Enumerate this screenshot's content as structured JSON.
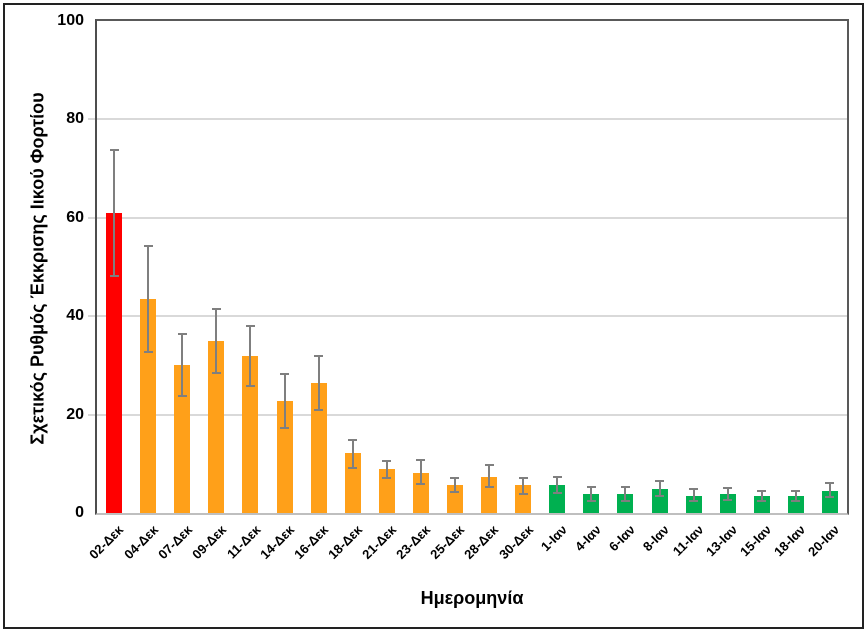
{
  "chart_data": {
    "type": "bar",
    "title": "",
    "xlabel": "Ημερομηνία",
    "ylabel": "Σχετικός Ρυθμός Έκκρισης Ιικού Φορτίου",
    "ylim": [
      0,
      100
    ],
    "yticks": [
      0,
      20,
      40,
      60,
      80,
      100
    ],
    "grid": true,
    "legend": "none",
    "categories": [
      "02-Δεκ",
      "04-Δεκ",
      "07-Δεκ",
      "09-Δεκ",
      "11-Δεκ",
      "14-Δεκ",
      "16-Δεκ",
      "18-Δεκ",
      "21-Δεκ",
      "23-Δεκ",
      "25-Δεκ",
      "28-Δεκ",
      "30-Δεκ",
      "1-Ιαν",
      "4-Ιαν",
      "6-Ιαν",
      "8-Ιαν",
      "11-Ιαν",
      "13-Ιαν",
      "15-Ιαν",
      "18-Ιαν",
      "20-Ιαν"
    ],
    "values": [
      61.0,
      43.5,
      30.0,
      35.0,
      32.0,
      22.7,
      26.4,
      12.1,
      9.0,
      8.2,
      5.6,
      7.4,
      5.6,
      5.6,
      3.8,
      3.8,
      4.8,
      3.4,
      3.8,
      3.4,
      3.4,
      4.4
    ],
    "error_up": [
      13.0,
      11.0,
      6.5,
      6.7,
      6.2,
      5.7,
      5.8,
      2.9,
      1.8,
      2.8,
      1.8,
      2.6,
      1.8,
      2.0,
      1.7,
      1.6,
      2.0,
      1.6,
      1.4,
      1.2,
      1.2,
      2.0
    ],
    "error_down": [
      13.0,
      11.0,
      6.5,
      6.8,
      6.3,
      5.6,
      5.7,
      3.2,
      2.0,
      2.6,
      1.6,
      2.4,
      2.0,
      1.8,
      1.6,
      1.5,
      1.6,
      1.2,
      1.3,
      1.1,
      1.1,
      1.4
    ],
    "bar_colors": [
      "red",
      "orange",
      "orange",
      "orange",
      "orange",
      "orange",
      "orange",
      "orange",
      "orange",
      "orange",
      "orange",
      "orange",
      "orange",
      "green",
      "green",
      "green",
      "green",
      "green",
      "green",
      "green",
      "green",
      "green"
    ],
    "colors": {
      "red": "#FF0000",
      "orange": "#FFA019",
      "green": "#00B050",
      "error_bar": "#7F7F7F",
      "gridline": "#D9D9D9",
      "axis_box": "#595959",
      "bottom_axis": "#BFBFBF"
    }
  }
}
